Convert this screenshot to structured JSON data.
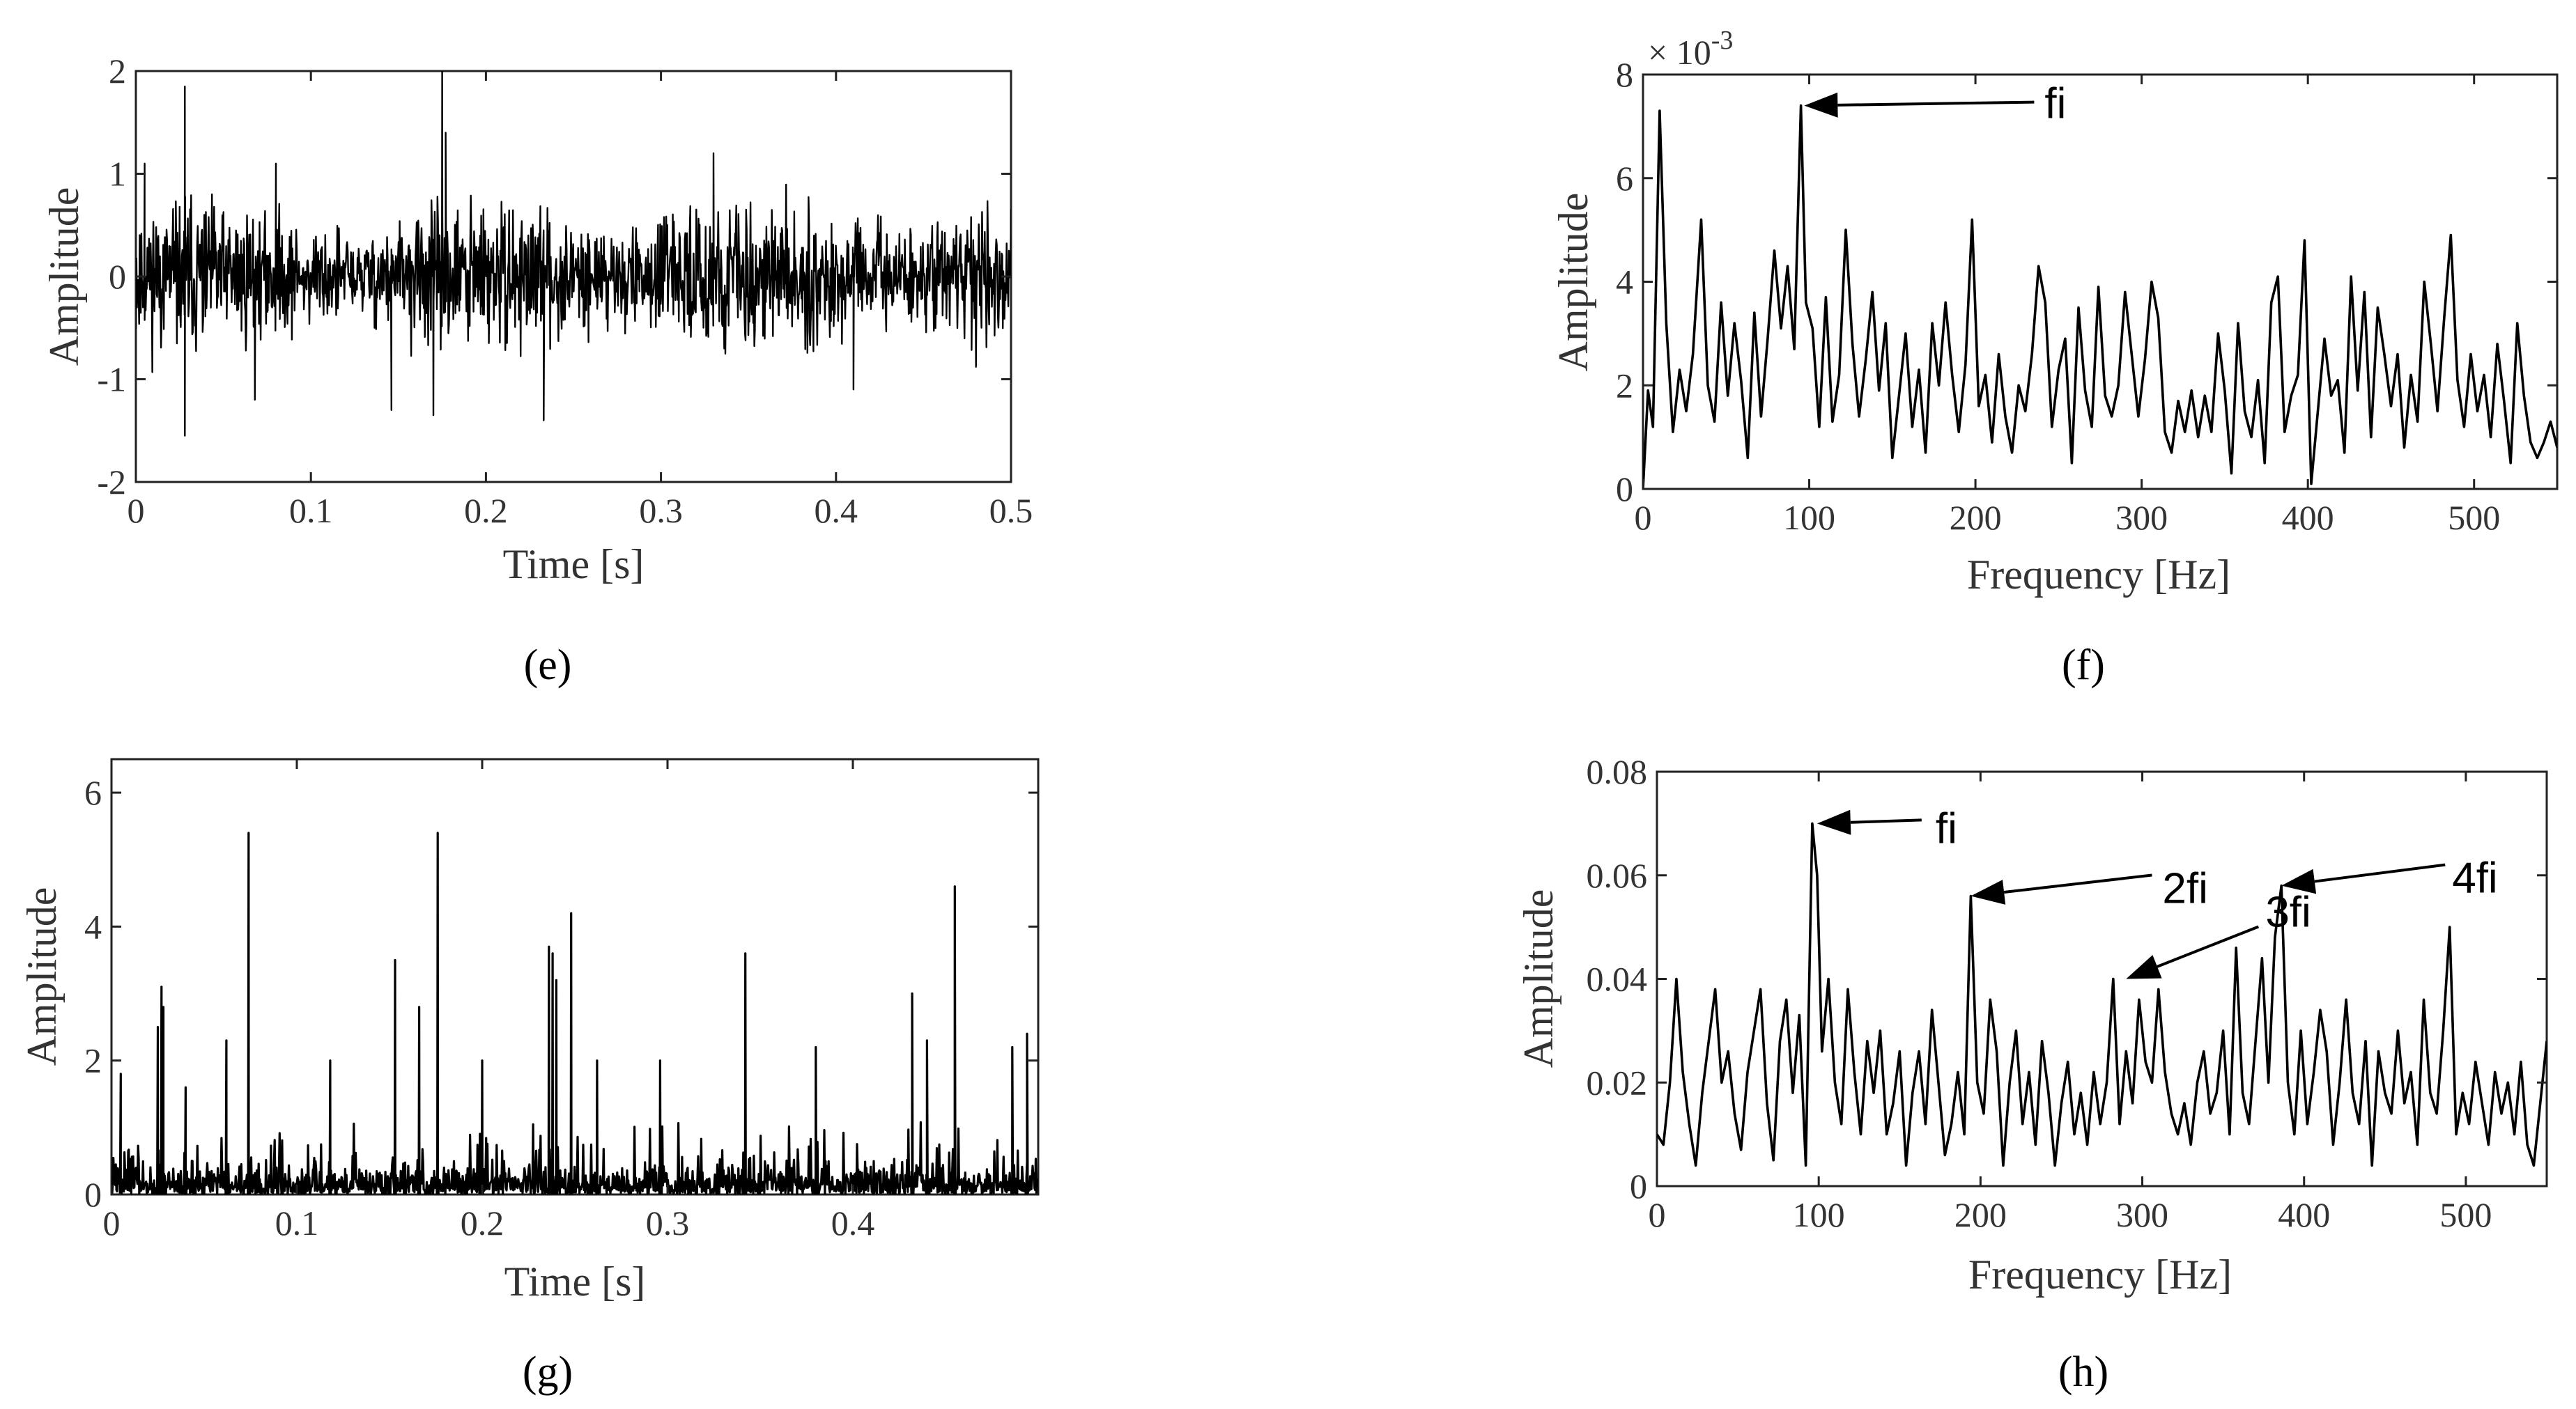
{
  "colors": {
    "line": "#000000",
    "axis": "#222222",
    "text": "#333333"
  },
  "chart_data": [
    {
      "id": "e",
      "type": "line",
      "panel_label": "(e)",
      "xlabel": "Time [s]",
      "ylabel": "Amplitude",
      "xlim": [
        0,
        0.5
      ],
      "ylim": [
        -2,
        2
      ],
      "xticks": [
        0,
        0.1,
        0.2,
        0.3,
        0.4,
        0.5
      ],
      "xtick_labels": [
        "0",
        "0.1",
        "0.2",
        "0.3",
        "0.4",
        "0.5"
      ],
      "yticks": [
        -2,
        -1,
        0,
        1,
        2
      ],
      "ytick_labels": [
        "-2",
        "-1",
        "0",
        "1",
        "2"
      ],
      "signal": {
        "kind": "noise",
        "n": 1600,
        "amp": 0.4,
        "seed": 11
      },
      "spikes": [
        {
          "x": 0.028,
          "y": 1.85
        },
        {
          "x": 0.028,
          "y": -1.55
        },
        {
          "x": 0.175,
          "y": 2.05
        },
        {
          "x": 0.177,
          "y": 1.4
        },
        {
          "x": 0.233,
          "y": -1.4
        },
        {
          "x": 0.146,
          "y": -1.3
        },
        {
          "x": 0.17,
          "y": -1.35
        },
        {
          "x": 0.068,
          "y": -1.2
        },
        {
          "x": 0.41,
          "y": -1.1
        },
        {
          "x": 0.33,
          "y": 1.2
        },
        {
          "x": 0.08,
          "y": 1.1
        },
        {
          "x": 0.005,
          "y": 1.1
        }
      ]
    },
    {
      "id": "f",
      "type": "line",
      "panel_label": "(f)",
      "xlabel": "Frequency [Hz]",
      "ylabel": "Amplitude",
      "y_exponent_label": "× 10",
      "y_exponent_power": "-3",
      "xlim": [
        0,
        550
      ],
      "ylim": [
        0,
        8
      ],
      "xticks": [
        0,
        100,
        200,
        300,
        400,
        500
      ],
      "xtick_labels": [
        "0",
        "100",
        "200",
        "300",
        "400",
        "500"
      ],
      "yticks": [
        0,
        2,
        4,
        6,
        8
      ],
      "ytick_labels": [
        "0",
        "2",
        "4",
        "6",
        "8"
      ],
      "x": [
        0,
        3,
        6,
        10,
        14,
        18,
        22,
        26,
        30,
        35,
        39,
        43,
        47,
        51,
        55,
        59,
        63,
        67,
        71,
        75,
        79,
        83,
        87,
        91,
        95,
        98,
        102,
        106,
        110,
        114,
        118,
        122,
        126,
        130,
        134,
        138,
        142,
        146,
        150,
        154,
        158,
        162,
        166,
        170,
        174,
        178,
        182,
        186,
        190,
        194,
        198,
        202,
        206,
        210,
        214,
        218,
        222,
        226,
        230,
        234,
        238,
        242,
        246,
        250,
        254,
        258,
        262,
        266,
        270,
        274,
        278,
        282,
        286,
        290,
        294,
        298,
        302,
        306,
        310,
        314,
        318,
        322,
        326,
        330,
        334,
        338,
        342,
        346,
        350,
        354,
        358,
        362,
        366,
        370,
        374,
        378,
        382,
        386,
        390,
        394,
        398,
        402,
        406,
        410,
        414,
        418,
        422,
        426,
        430,
        434,
        438,
        442,
        446,
        450,
        454,
        458,
        462,
        466,
        470,
        474,
        478,
        482,
        486,
        490,
        494,
        498,
        502,
        506,
        510,
        514,
        518,
        522,
        526,
        530,
        534,
        538,
        542,
        546,
        550
      ],
      "values": [
        0,
        1.9,
        1.2,
        7.3,
        3.2,
        1.1,
        2.3,
        1.5,
        2.6,
        5.2,
        2.0,
        1.3,
        3.6,
        1.8,
        3.2,
        2.1,
        0.6,
        3.4,
        1.4,
        2.9,
        4.6,
        3.1,
        4.3,
        2.7,
        7.4,
        3.6,
        3.1,
        1.2,
        3.7,
        1.3,
        2.2,
        5.0,
        2.8,
        1.4,
        2.5,
        3.8,
        1.9,
        3.2,
        0.6,
        1.8,
        3.0,
        1.2,
        2.3,
        0.7,
        3.2,
        2.0,
        3.6,
        2.2,
        1.1,
        2.4,
        5.2,
        1.6,
        2.2,
        0.9,
        2.6,
        1.4,
        0.7,
        2.0,
        1.5,
        2.6,
        4.3,
        3.6,
        1.2,
        2.3,
        2.9,
        0.5,
        3.5,
        1.9,
        1.2,
        3.9,
        1.8,
        1.4,
        2.0,
        3.8,
        2.6,
        1.4,
        2.5,
        4.0,
        3.3,
        1.1,
        0.7,
        1.7,
        1.1,
        1.9,
        1.0,
        1.8,
        1.1,
        3.0,
        1.9,
        0.3,
        3.2,
        1.5,
        1.0,
        2.1,
        0.5,
        3.6,
        4.1,
        1.1,
        1.8,
        2.2,
        4.8,
        0.1,
        1.5,
        2.9,
        1.8,
        2.1,
        0.7,
        4.1,
        1.9,
        3.8,
        1.0,
        3.5,
        2.6,
        1.6,
        2.6,
        0.8,
        2.2,
        1.3,
        4.0,
        2.8,
        1.5,
        3.3,
        4.9,
        2.1,
        1.2,
        2.6,
        1.5,
        2.2,
        1.0,
        2.8,
        1.7,
        0.5,
        3.2,
        1.8,
        0.9,
        0.6,
        0.9,
        1.3,
        0.8
      ]
    },
    {
      "id": "g",
      "type": "line",
      "panel_label": "(g)",
      "xlabel": "Time [s]",
      "ylabel": "Amplitude",
      "xlim": [
        0,
        0.5
      ],
      "ylim": [
        0,
        6.5
      ],
      "xticks": [
        0,
        0.1,
        0.2,
        0.3,
        0.4
      ],
      "xtick_labels": [
        "0",
        "0.1",
        "0.2",
        "0.3",
        "0.4"
      ],
      "yticks": [
        0,
        2,
        4,
        6
      ],
      "ytick_labels": [
        "0",
        "2",
        "4",
        "6"
      ],
      "signal": {
        "kind": "abs-noise",
        "n": 1500,
        "amp": 0.35,
        "seed": 23
      },
      "spikes": [
        {
          "x": 0.025,
          "y": 2.5
        },
        {
          "x": 0.027,
          "y": 3.1
        },
        {
          "x": 0.028,
          "y": 2.8
        },
        {
          "x": 0.074,
          "y": 5.4
        },
        {
          "x": 0.062,
          "y": 2.3
        },
        {
          "x": 0.04,
          "y": 1.6
        },
        {
          "x": 0.153,
          "y": 3.5
        },
        {
          "x": 0.166,
          "y": 2.8
        },
        {
          "x": 0.176,
          "y": 5.4
        },
        {
          "x": 0.118,
          "y": 2.0
        },
        {
          "x": 0.236,
          "y": 3.7
        },
        {
          "x": 0.238,
          "y": 3.6
        },
        {
          "x": 0.24,
          "y": 3.2
        },
        {
          "x": 0.248,
          "y": 4.2
        },
        {
          "x": 0.262,
          "y": 2.0
        },
        {
          "x": 0.342,
          "y": 3.6
        },
        {
          "x": 0.296,
          "y": 2.0
        },
        {
          "x": 0.38,
          "y": 2.2
        },
        {
          "x": 0.432,
          "y": 3.0
        },
        {
          "x": 0.44,
          "y": 2.3
        },
        {
          "x": 0.455,
          "y": 4.6
        },
        {
          "x": 0.486,
          "y": 2.2
        },
        {
          "x": 0.494,
          "y": 2.4
        },
        {
          "x": 0.2,
          "y": 2.0
        },
        {
          "x": 0.005,
          "y": 1.8
        }
      ]
    },
    {
      "id": "h",
      "type": "line",
      "panel_label": "(h)",
      "xlabel": "Frequency [Hz]",
      "ylabel": "Amplitude",
      "xlim": [
        0,
        550
      ],
      "ylim": [
        0,
        0.08
      ],
      "xticks": [
        0,
        100,
        200,
        300,
        400,
        500
      ],
      "xtick_labels": [
        "0",
        "100",
        "200",
        "300",
        "400",
        "500"
      ],
      "yticks": [
        0,
        0.02,
        0.04,
        0.06,
        0.08
      ],
      "ytick_labels": [
        "0",
        "0.02",
        "0.04",
        "0.06",
        "0.08"
      ],
      "x": [
        0,
        4,
        8,
        12,
        16,
        20,
        24,
        28,
        32,
        36,
        40,
        44,
        48,
        52,
        56,
        60,
        64,
        68,
        72,
        76,
        80,
        84,
        88,
        92,
        96,
        99,
        102,
        106,
        110,
        114,
        118,
        122,
        126,
        130,
        134,
        138,
        142,
        146,
        150,
        154,
        158,
        162,
        166,
        170,
        174,
        178,
        182,
        186,
        190,
        194,
        198,
        202,
        206,
        210,
        214,
        218,
        222,
        226,
        230,
        234,
        238,
        242,
        246,
        250,
        254,
        258,
        262,
        266,
        270,
        274,
        278,
        282,
        286,
        290,
        294,
        298,
        302,
        306,
        310,
        314,
        318,
        322,
        326,
        330,
        334,
        338,
        342,
        346,
        350,
        354,
        358,
        362,
        366,
        370,
        374,
        378,
        382,
        386,
        390,
        394,
        398,
        402,
        406,
        410,
        414,
        418,
        422,
        426,
        430,
        434,
        438,
        442,
        446,
        450,
        454,
        458,
        462,
        466,
        470,
        474,
        478,
        482,
        486,
        490,
        494,
        498,
        502,
        506,
        510,
        514,
        518,
        522,
        526,
        530,
        534,
        538,
        542,
        546,
        550
      ],
      "values": [
        0.01,
        0.008,
        0.02,
        0.04,
        0.022,
        0.012,
        0.004,
        0.018,
        0.028,
        0.038,
        0.02,
        0.026,
        0.014,
        0.007,
        0.022,
        0.03,
        0.038,
        0.016,
        0.005,
        0.028,
        0.036,
        0.018,
        0.033,
        0.004,
        0.07,
        0.06,
        0.026,
        0.04,
        0.02,
        0.012,
        0.038,
        0.022,
        0.01,
        0.028,
        0.018,
        0.03,
        0.01,
        0.016,
        0.026,
        0.004,
        0.018,
        0.026,
        0.012,
        0.034,
        0.02,
        0.006,
        0.012,
        0.022,
        0.01,
        0.056,
        0.02,
        0.014,
        0.036,
        0.026,
        0.004,
        0.02,
        0.03,
        0.012,
        0.022,
        0.008,
        0.028,
        0.018,
        0.004,
        0.016,
        0.024,
        0.01,
        0.018,
        0.008,
        0.022,
        0.012,
        0.02,
        0.04,
        0.012,
        0.026,
        0.016,
        0.036,
        0.024,
        0.02,
        0.038,
        0.022,
        0.014,
        0.01,
        0.016,
        0.008,
        0.02,
        0.026,
        0.014,
        0.018,
        0.03,
        0.01,
        0.046,
        0.018,
        0.012,
        0.028,
        0.044,
        0.02,
        0.048,
        0.058,
        0.02,
        0.01,
        0.03,
        0.012,
        0.022,
        0.034,
        0.026,
        0.008,
        0.02,
        0.036,
        0.018,
        0.012,
        0.028,
        0.004,
        0.026,
        0.018,
        0.014,
        0.03,
        0.016,
        0.022,
        0.008,
        0.036,
        0.018,
        0.014,
        0.03,
        0.05,
        0.01,
        0.018,
        0.012,
        0.024,
        0.016,
        0.008,
        0.022,
        0.014,
        0.02,
        0.01,
        0.024,
        0.008,
        0.004,
        0.016,
        0.028
      ]
    }
  ],
  "annotations": {
    "f": [
      {
        "text": "fi",
        "target": [
          97,
          7.4
        ]
      }
    ],
    "h": [
      {
        "text": "fi",
        "target": [
          99,
          0.07
        ]
      },
      {
        "text": "2fi",
        "target": [
          194,
          0.056
        ]
      },
      {
        "text": "3fi",
        "target": [
          290,
          0.04
        ]
      },
      {
        "text": "4fi",
        "target": [
          386,
          0.058
        ]
      }
    ]
  }
}
